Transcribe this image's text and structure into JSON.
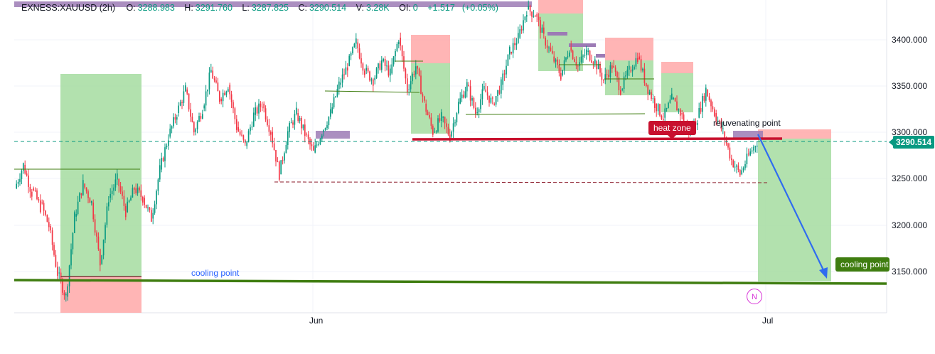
{
  "header": {
    "symbol": "EXNESS:XAUUSD (2h)",
    "o_label": "O:",
    "o_value": "3288.983",
    "h_label": "H:",
    "h_value": "3291.760",
    "l_label": "L:",
    "l_value": "3287.825",
    "c_label": "C:",
    "c_value": "3290.514",
    "vol_label": "V:",
    "vol_value": "3.28K",
    "oi_label": "OI:",
    "oi_value": "0",
    "change": "+1.517",
    "change_pct": "(+0.05%)"
  },
  "colors": {
    "up": "#089981",
    "down": "#f23645",
    "green_zone": "#a5dca0",
    "red_zone": "#ffa8a8",
    "purple_zone": "#9c7bb5",
    "heat_line": "#c8102e",
    "cool_line": "#3f7d10",
    "arrow": "#2f6cf0"
  },
  "annotations": {
    "heat_zone": "heat zone",
    "rejuvenating_point": "rejuvenating point",
    "cooling_point_text": "cooling point",
    "cooling_point_tag": "cooling point",
    "news_marker": "N"
  },
  "current_price": "3290.514",
  "chart_data": {
    "type": "candlestick",
    "y_axis": {
      "ticks": [
        "3400.000",
        "3350.000",
        "3300.000",
        "3250.000",
        "3200.000",
        "3150.000"
      ],
      "range": [
        3108,
        3440
      ]
    },
    "x_axis": {
      "ticks": [
        "Jun",
        "Jul"
      ]
    },
    "path_points": [
      [
        3240,
        3265
      ],
      [
        3265,
        3235
      ],
      [
        3240,
        3220
      ],
      [
        3225,
        3200
      ],
      [
        3200,
        3150
      ],
      [
        3150,
        3125
      ],
      [
        3125,
        3210
      ],
      [
        3210,
        3245
      ],
      [
        3245,
        3225
      ],
      [
        3225,
        3160
      ],
      [
        3160,
        3230
      ],
      [
        3230,
        3250
      ],
      [
        3250,
        3215
      ],
      [
        3215,
        3240
      ],
      [
        3240,
        3230
      ],
      [
        3230,
        3208
      ],
      [
        3208,
        3260
      ],
      [
        3260,
        3295
      ],
      [
        3295,
        3320
      ],
      [
        3320,
        3345
      ],
      [
        3345,
        3300
      ],
      [
        3300,
        3325
      ],
      [
        3325,
        3365
      ],
      [
        3365,
        3335
      ],
      [
        3335,
        3350
      ],
      [
        3350,
        3305
      ],
      [
        3305,
        3285
      ],
      [
        3285,
        3318
      ],
      [
        3318,
        3330
      ],
      [
        3330,
        3300
      ],
      [
        3300,
        3255
      ],
      [
        3255,
        3300
      ],
      [
        3300,
        3320
      ],
      [
        3320,
        3298
      ],
      [
        3298,
        3278
      ],
      [
        3278,
        3300
      ],
      [
        3300,
        3320
      ],
      [
        3320,
        3350
      ],
      [
        3350,
        3370
      ],
      [
        3370,
        3395
      ],
      [
        3395,
        3365
      ],
      [
        3365,
        3355
      ],
      [
        3355,
        3375
      ],
      [
        3375,
        3362
      ],
      [
        3362,
        3400
      ],
      [
        3400,
        3345
      ],
      [
        3345,
        3370
      ],
      [
        3370,
        3330
      ],
      [
        3330,
        3300
      ],
      [
        3300,
        3315
      ],
      [
        3315,
        3295
      ],
      [
        3295,
        3330
      ],
      [
        3330,
        3350
      ],
      [
        3350,
        3320
      ],
      [
        3320,
        3345
      ],
      [
        3345,
        3330
      ],
      [
        3330,
        3350
      ],
      [
        3350,
        3385
      ],
      [
        3385,
        3400
      ],
      [
        3400,
        3430
      ],
      [
        3430,
        3425
      ],
      [
        3425,
        3400
      ],
      [
        3400,
        3380
      ],
      [
        3380,
        3360
      ],
      [
        3360,
        3390
      ],
      [
        3390,
        3370
      ],
      [
        3370,
        3385
      ],
      [
        3385,
        3375
      ],
      [
        3375,
        3355
      ],
      [
        3355,
        3370
      ],
      [
        3370,
        3345
      ],
      [
        3345,
        3365
      ],
      [
        3365,
        3380
      ],
      [
        3380,
        3350
      ],
      [
        3350,
        3330
      ],
      [
        3330,
        3315
      ],
      [
        3315,
        3335
      ],
      [
        3335,
        3320
      ],
      [
        3320,
        3300
      ],
      [
        3300,
        3315
      ],
      [
        3315,
        3345
      ],
      [
        3345,
        3320
      ],
      [
        3320,
        3300
      ],
      [
        3300,
        3270
      ],
      [
        3270,
        3255
      ],
      [
        3255,
        3275
      ],
      [
        3275,
        3290
      ]
    ],
    "levels": [
      {
        "name": "heat zone",
        "value": 3292
      },
      {
        "name": "cooling point",
        "value": 3138
      },
      {
        "name": "dashed support",
        "value": 3246
      }
    ],
    "projection": {
      "from": 3293,
      "to": 3142
    }
  }
}
